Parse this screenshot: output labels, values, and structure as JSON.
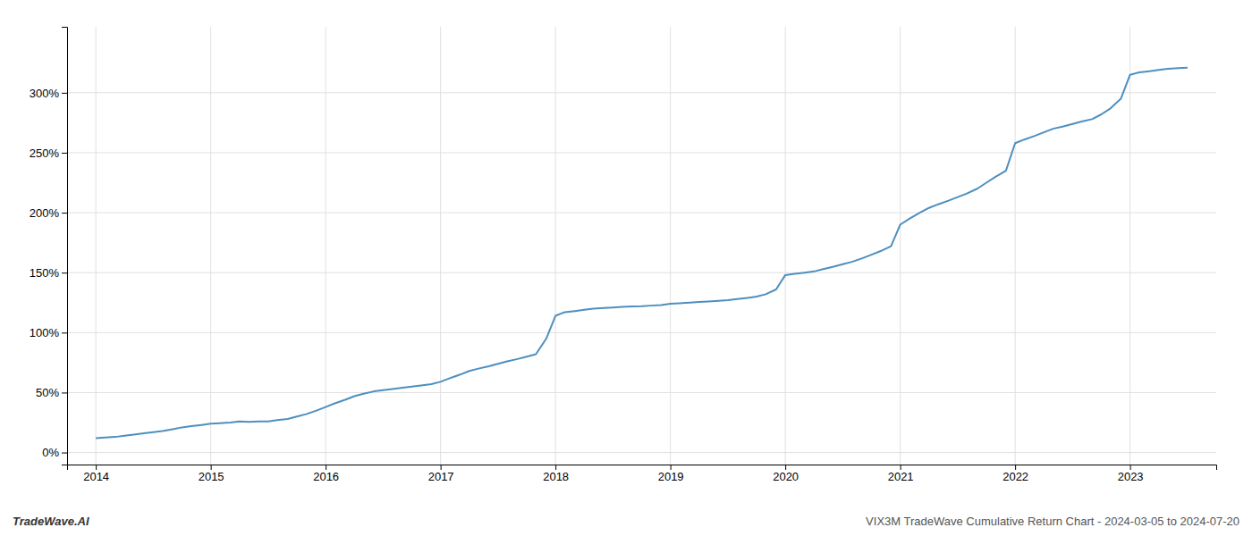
{
  "chart_data": {
    "type": "line",
    "annotations": [
      "TradeWave.AI",
      "VIX3M TradeWave Cumulative Return Chart - 2024-03-05 to 2024-07-20"
    ],
    "color": "#4d8fbf",
    "grid": true,
    "x": [
      2014.0,
      2014.08,
      2014.17,
      2014.25,
      2014.33,
      2014.42,
      2014.5,
      2014.58,
      2014.67,
      2014.75,
      2014.83,
      2014.92,
      2015.0,
      2015.08,
      2015.17,
      2015.25,
      2015.33,
      2015.42,
      2015.5,
      2015.58,
      2015.67,
      2015.75,
      2015.83,
      2015.92,
      2016.0,
      2016.08,
      2016.17,
      2016.25,
      2016.33,
      2016.42,
      2016.5,
      2016.58,
      2016.67,
      2016.75,
      2016.83,
      2016.92,
      2017.0,
      2017.08,
      2017.17,
      2017.25,
      2017.33,
      2017.42,
      2017.5,
      2017.58,
      2017.67,
      2017.75,
      2017.83,
      2017.92,
      2018.0,
      2018.05,
      2018.08,
      2018.17,
      2018.25,
      2018.33,
      2018.42,
      2018.5,
      2018.58,
      2018.67,
      2018.75,
      2018.83,
      2018.92,
      2019.0,
      2019.08,
      2019.17,
      2019.25,
      2019.33,
      2019.42,
      2019.5,
      2019.58,
      2019.67,
      2019.75,
      2019.83,
      2019.92,
      2020.0,
      2020.08,
      2020.17,
      2020.25,
      2020.33,
      2020.42,
      2020.5,
      2020.58,
      2020.67,
      2020.75,
      2020.83,
      2020.92,
      2021.0,
      2021.08,
      2021.17,
      2021.25,
      2021.33,
      2021.42,
      2021.5,
      2021.58,
      2021.67,
      2021.75,
      2021.83,
      2021.92,
      2022.0,
      2022.08,
      2022.17,
      2022.25,
      2022.33,
      2022.42,
      2022.5,
      2022.58,
      2022.67,
      2022.75,
      2022.83,
      2022.92,
      2023.0,
      2023.08,
      2023.17,
      2023.25,
      2023.33,
      2023.42,
      2023.5
    ],
    "values": [
      12,
      12.5,
      13,
      14,
      15,
      16,
      17,
      18,
      19.5,
      21,
      22,
      23,
      24,
      24.5,
      25,
      26,
      25.5,
      26,
      26,
      27,
      28,
      30,
      32,
      35,
      38,
      41,
      44,
      47,
      49,
      51,
      52,
      53,
      54,
      55,
      56,
      57,
      59,
      62,
      65,
      68,
      70,
      72,
      74,
      76,
      78,
      80,
      82,
      95,
      114,
      116,
      117,
      118,
      119,
      120,
      120.5,
      121,
      121.5,
      121.8,
      122,
      122.5,
      123,
      124,
      124.5,
      125,
      125.5,
      126,
      126.5,
      127,
      128,
      129,
      130,
      132,
      136,
      148,
      149,
      150,
      151,
      153,
      155,
      157,
      159,
      162,
      165,
      168,
      172,
      190,
      195,
      200,
      204,
      207,
      210,
      213,
      216,
      220,
      225,
      230,
      235,
      258,
      261,
      264,
      267,
      270,
      272,
      274,
      276,
      278,
      282,
      287,
      295,
      315,
      317,
      318,
      319,
      320,
      320.5,
      321
    ],
    "xlim": [
      2013.75,
      2023.75
    ],
    "ylim": [
      -10,
      355
    ],
    "xticks": [
      2014,
      2015,
      2016,
      2017,
      2018,
      2019,
      2020,
      2021,
      2022,
      2023
    ],
    "yticks": [
      {
        "value": 0,
        "label": "0%"
      },
      {
        "value": 50,
        "label": "50%"
      },
      {
        "value": 100,
        "label": "100%"
      },
      {
        "value": 150,
        "label": "150%"
      },
      {
        "value": 200,
        "label": "200%"
      },
      {
        "value": 250,
        "label": "250%"
      },
      {
        "value": 300,
        "label": "300%"
      }
    ]
  }
}
